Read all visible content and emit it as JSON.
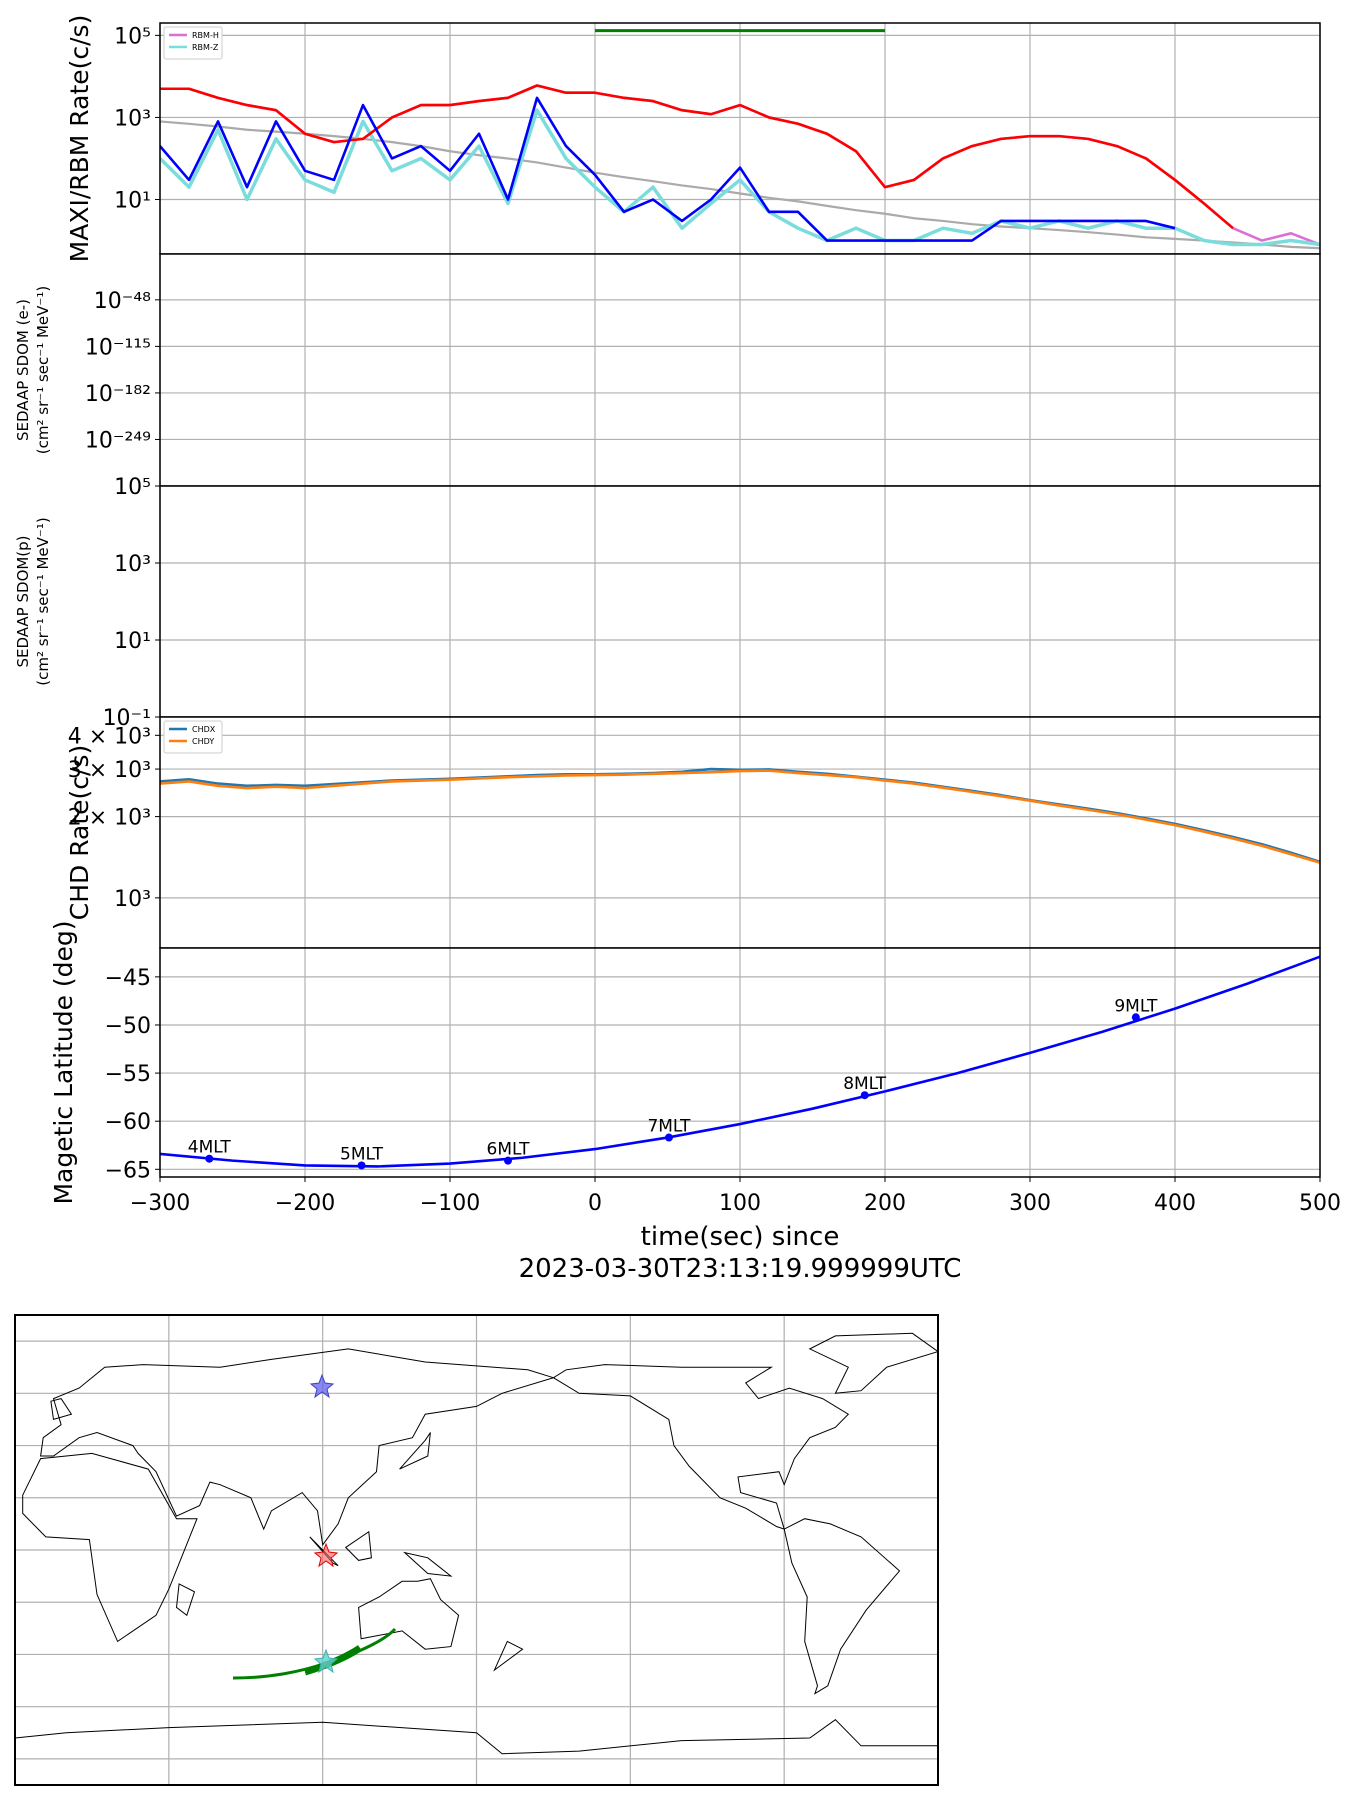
{
  "chart_data": [
    {
      "type": "line",
      "yscale": "log",
      "ylabel": [
        "MAXI/RBM Rate(c/s)"
      ],
      "grid": true,
      "legend": "upper left",
      "xlim": [
        -300,
        500
      ],
      "xticks": [
        -300,
        -200,
        -100,
        0,
        100,
        200,
        300,
        400,
        500
      ],
      "ylim": [
        0.47,
        200000
      ],
      "yticks": [
        {
          "value": 10,
          "label": "10¹"
        },
        {
          "value": 1000,
          "label": "10³"
        },
        {
          "value": 100000,
          "label": "10⁵"
        }
      ],
      "x": [
        -300,
        -280,
        -260,
        -240,
        -220,
        -200,
        -180,
        -160,
        -140,
        -120,
        -100,
        -80,
        -60,
        -40,
        -20,
        0,
        20,
        40,
        60,
        80,
        100,
        120,
        140,
        160,
        180,
        200,
        220,
        240,
        260,
        280,
        300,
        320,
        340,
        360,
        380,
        400,
        420,
        440,
        460,
        480,
        500
      ],
      "series": [
        {
          "color": "#aaaaaa",
          "values": [
            800,
            700,
            600,
            500,
            450,
            400,
            350,
            300,
            250,
            200,
            150,
            120,
            100,
            80,
            60,
            45,
            35,
            28,
            22,
            18,
            14,
            11,
            9,
            7,
            5.5,
            4.5,
            3.5,
            3,
            2.5,
            2.2,
            2,
            1.8,
            1.6,
            1.4,
            1.2,
            1.1,
            1,
            0.9,
            0.8,
            0.7,
            0.65
          ]
        },
        {
          "name": "RBM-H",
          "color": "#da70d6",
          "values": [
            5000,
            5000,
            3000,
            2000,
            1500,
            400,
            250,
            300,
            1000,
            2000,
            2000,
            2500,
            3000,
            6000,
            4000,
            4000,
            3000,
            2500,
            1500,
            1200,
            2000,
            1000,
            700,
            400,
            150,
            20,
            30,
            100,
            200,
            300,
            350,
            350,
            300,
            200,
            100,
            30,
            8,
            2,
            1,
            1.5,
            0.8
          ]
        },
        {
          "name": "RBM-Z",
          "color": "#7adcdc",
          "values": [
            100,
            20,
            500,
            10,
            300,
            30,
            15,
            800,
            50,
            100,
            30,
            200,
            8,
            1500,
            100,
            20,
            5,
            20,
            2,
            8,
            30,
            5,
            2,
            1,
            2,
            1,
            1,
            2,
            1.5,
            3,
            2,
            3,
            2,
            3,
            2,
            2,
            1,
            0.8,
            0.8,
            1,
            0.8
          ]
        },
        {
          "color": "#ff0000",
          "values": [
            5000,
            5000,
            3000,
            2000,
            1500,
            400,
            250,
            300,
            1000,
            2000,
            2000,
            2500,
            3000,
            6000,
            4000,
            4000,
            3000,
            2500,
            1500,
            1200,
            2000,
            1000,
            700,
            400,
            150,
            20,
            30,
            100,
            200,
            300,
            350,
            350,
            300,
            200,
            100,
            30,
            8,
            2,
            null,
            null,
            null
          ]
        },
        {
          "color": "#0000ff",
          "values": [
            200,
            30,
            800,
            20,
            800,
            50,
            30,
            2000,
            100,
            200,
            50,
            400,
            10,
            3000,
            200,
            40,
            5,
            10,
            3,
            10,
            60,
            5,
            5,
            1,
            1,
            1,
            1,
            1,
            1,
            3,
            3,
            3,
            3,
            3,
            3,
            2,
            null,
            null,
            null,
            null,
            null
          ]
        }
      ],
      "interval": {
        "x": [
          0,
          200
        ],
        "y": 130000,
        "color": "#008000"
      }
    },
    {
      "type": "line",
      "yscale": "log",
      "ylabel": [
        "SEDAAP SDOM (e-)",
        "(cm² sr⁻¹ sec⁻¹ MeV⁻¹)"
      ],
      "grid": true,
      "xlim": [
        -300,
        500
      ],
      "xticks": [
        -300,
        -200,
        -100,
        0,
        100,
        200,
        300,
        400,
        500
      ],
      "ylim": [
        1e-316,
        1e+18
      ],
      "yticks": [
        {
          "value": 1e-249,
          "label": "10⁻²⁴⁹"
        },
        {
          "value": 1e-182,
          "label": "10⁻¹⁸²"
        },
        {
          "value": 1e-115,
          "label": "10⁻¹¹⁵"
        },
        {
          "value": 1e-48,
          "label": "10⁻⁴⁸"
        }
      ],
      "series": []
    },
    {
      "type": "line",
      "yscale": "log",
      "ylabel": [
        "SEDAAP SDOM(p)",
        "(cm² sr⁻¹ sec⁻¹ MeV⁻¹)"
      ],
      "grid": true,
      "xlim": [
        -300,
        500
      ],
      "xticks": [
        -300,
        -200,
        -100,
        0,
        100,
        200,
        300,
        400,
        500
      ],
      "ylim": [
        0.1,
        100000
      ],
      "yticks": [
        {
          "value": 0.1,
          "label": "10⁻¹"
        },
        {
          "value": 10,
          "label": "10¹"
        },
        {
          "value": 1000,
          "label": "10³"
        },
        {
          "value": 100000,
          "label": "10⁵"
        }
      ],
      "series": []
    },
    {
      "type": "line",
      "yscale": "log",
      "ylabel": [
        "CHD Rate(c/s)"
      ],
      "grid": true,
      "legend": "upper left",
      "xlim": [
        -300,
        500
      ],
      "xticks": [
        -300,
        -200,
        -100,
        0,
        100,
        200,
        300,
        400,
        500
      ],
      "ylim": [
        652,
        4677
      ],
      "yticks": [
        {
          "value": 1000,
          "label": "10³"
        },
        {
          "value": 2000,
          "label": "2 × 10³"
        },
        {
          "value": 3000,
          "label": "3 × 10³"
        },
        {
          "value": 4000,
          "label": "4 × 10³"
        }
      ],
      "x": [
        -300,
        -280,
        -260,
        -240,
        -220,
        -200,
        -180,
        -160,
        -140,
        -120,
        -100,
        -80,
        -60,
        -40,
        -20,
        0,
        20,
        40,
        60,
        80,
        100,
        120,
        140,
        160,
        180,
        200,
        220,
        240,
        260,
        280,
        300,
        320,
        340,
        360,
        380,
        400,
        420,
        440,
        460,
        480,
        500
      ],
      "series": [
        {
          "name": "CHDX",
          "color": "#1f77b4",
          "values": [
            2700,
            2750,
            2650,
            2600,
            2620,
            2600,
            2640,
            2680,
            2720,
            2740,
            2760,
            2790,
            2820,
            2850,
            2870,
            2870,
            2880,
            2900,
            2930,
            3000,
            2980,
            2990,
            2930,
            2880,
            2810,
            2740,
            2670,
            2580,
            2490,
            2400,
            2300,
            2220,
            2140,
            2060,
            1970,
            1880,
            1780,
            1680,
            1580,
            1470,
            1360
          ]
        },
        {
          "name": "CHDY",
          "color": "#ff7f0e",
          "values": [
            2650,
            2700,
            2600,
            2550,
            2580,
            2550,
            2600,
            2650,
            2700,
            2720,
            2740,
            2770,
            2800,
            2820,
            2840,
            2850,
            2860,
            2880,
            2900,
            2920,
            2950,
            2960,
            2900,
            2850,
            2800,
            2720,
            2650,
            2560,
            2470,
            2380,
            2290,
            2200,
            2120,
            2040,
            1950,
            1860,
            1760,
            1660,
            1560,
            1450,
            1350
          ]
        }
      ]
    },
    {
      "type": "line",
      "yscale": "linear",
      "ylabel": [
        "Magetic Latitude  (deg)"
      ],
      "grid": true,
      "xlabel": [
        "time(sec) since",
        "2023-03-30T23:13:19.999999UTC"
      ],
      "xlim": [
        -300,
        500
      ],
      "xticks": [
        {
          "value": -300,
          "label": "−300"
        },
        {
          "value": -200,
          "label": "−200"
        },
        {
          "value": -100,
          "label": "−100"
        },
        0,
        100,
        200,
        300,
        400,
        500
      ],
      "ylim": [
        -65.8,
        -42.0
      ],
      "yticks": [
        {
          "value": -65,
          "label": "−65"
        },
        {
          "value": -60,
          "label": "−60"
        },
        {
          "value": -55,
          "label": "−55"
        },
        {
          "value": -50,
          "label": "−50"
        },
        {
          "value": -45,
          "label": "−45"
        }
      ],
      "x": [
        -300,
        -250,
        -200,
        -150,
        -100,
        -50,
        0,
        50,
        100,
        150,
        200,
        250,
        300,
        350,
        400,
        450,
        500
      ],
      "series": [
        {
          "color": "#0000ff",
          "values": [
            -63.4,
            -64.1,
            -64.6,
            -64.7,
            -64.4,
            -63.8,
            -62.9,
            -61.7,
            -60.3,
            -58.7,
            -56.9,
            -55.0,
            -52.9,
            -50.7,
            -48.3,
            -45.7,
            -42.9
          ]
        }
      ],
      "points": {
        "color": "#0000ff",
        "x": [
          -266,
          -161,
          -60,
          51,
          186,
          373
        ],
        "values": [
          -63.9,
          -64.6,
          -64.1,
          -61.7,
          -57.3,
          -49.2
        ],
        "labels": [
          "4MLT",
          "5MLT",
          "6MLT",
          "7MLT",
          "8MLT",
          "9MLT"
        ]
      }
    }
  ]
}
